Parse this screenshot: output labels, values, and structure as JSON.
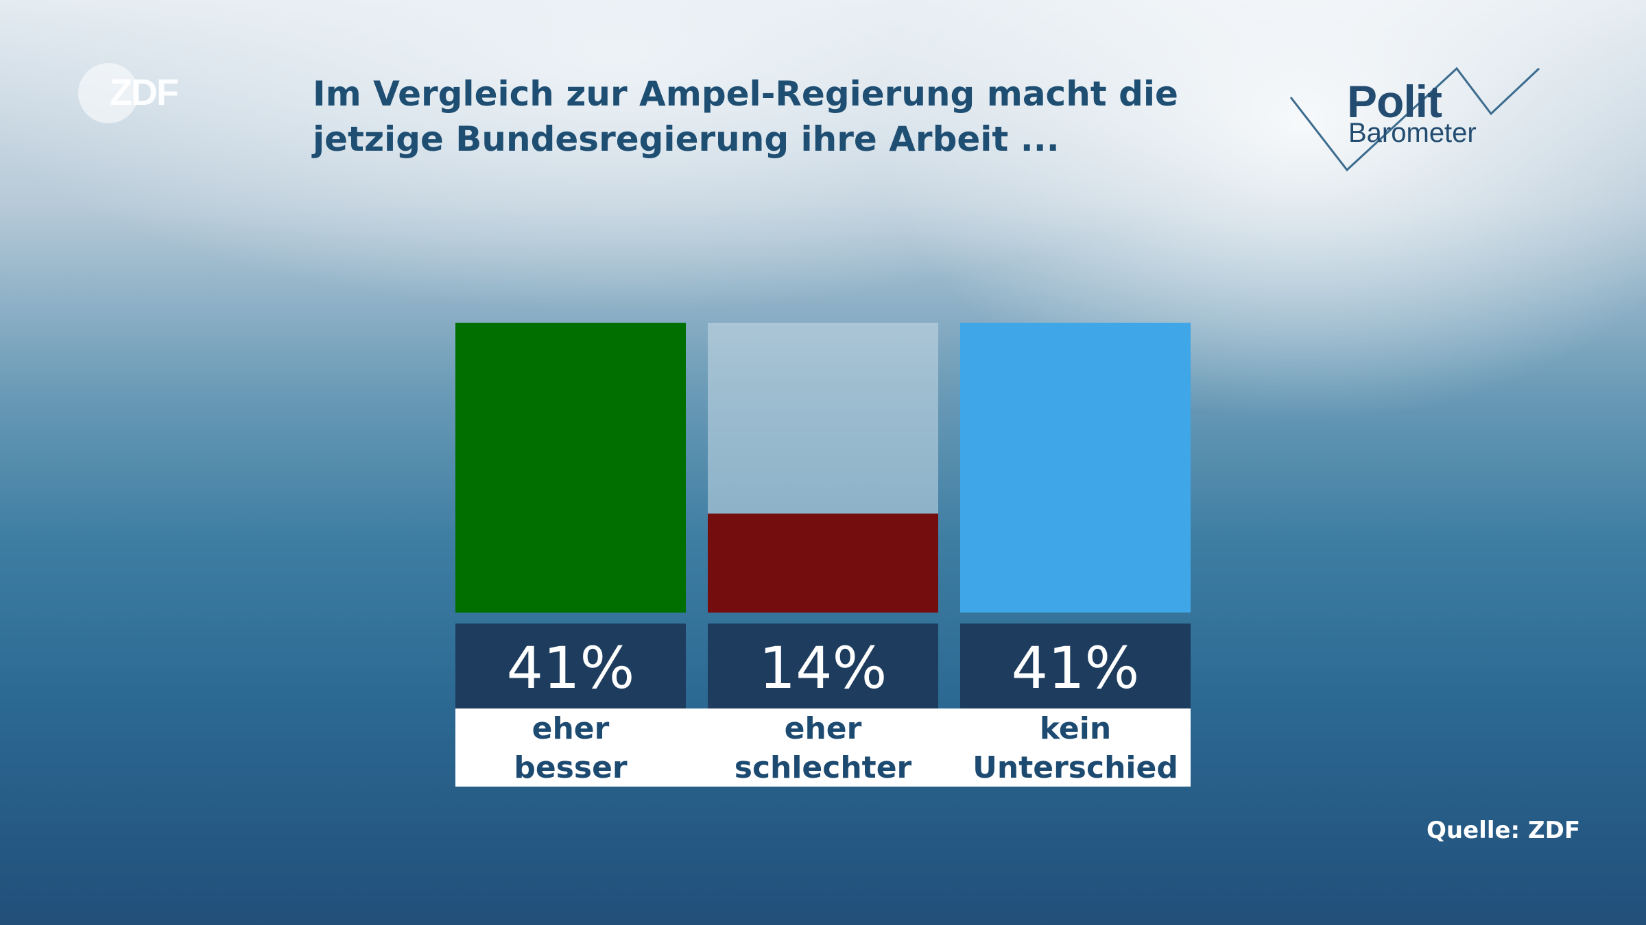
{
  "title_lines": [
    "Im Vergleich zur Ampel-Regierung macht die",
    "jetzige Bundesregierung ihre Arbeit ..."
  ],
  "logo_left": "ZDF",
  "logo_right": {
    "line1": "Polit",
    "line2": "Barometer"
  },
  "source": "Quelle: ZDF",
  "chart_data": {
    "type": "bar",
    "ylim": [
      0,
      41
    ],
    "categories": [
      [
        "eher",
        "besser"
      ],
      [
        "eher",
        "schlechter"
      ],
      [
        "kein",
        "Unterschied"
      ]
    ],
    "values": [
      41,
      14,
      41
    ],
    "value_labels": [
      "41%",
      "14%",
      "41%"
    ],
    "colors": [
      "#006f00",
      "#730d0e",
      "#3fa6e8"
    ],
    "track_color": "#c8dae6"
  }
}
